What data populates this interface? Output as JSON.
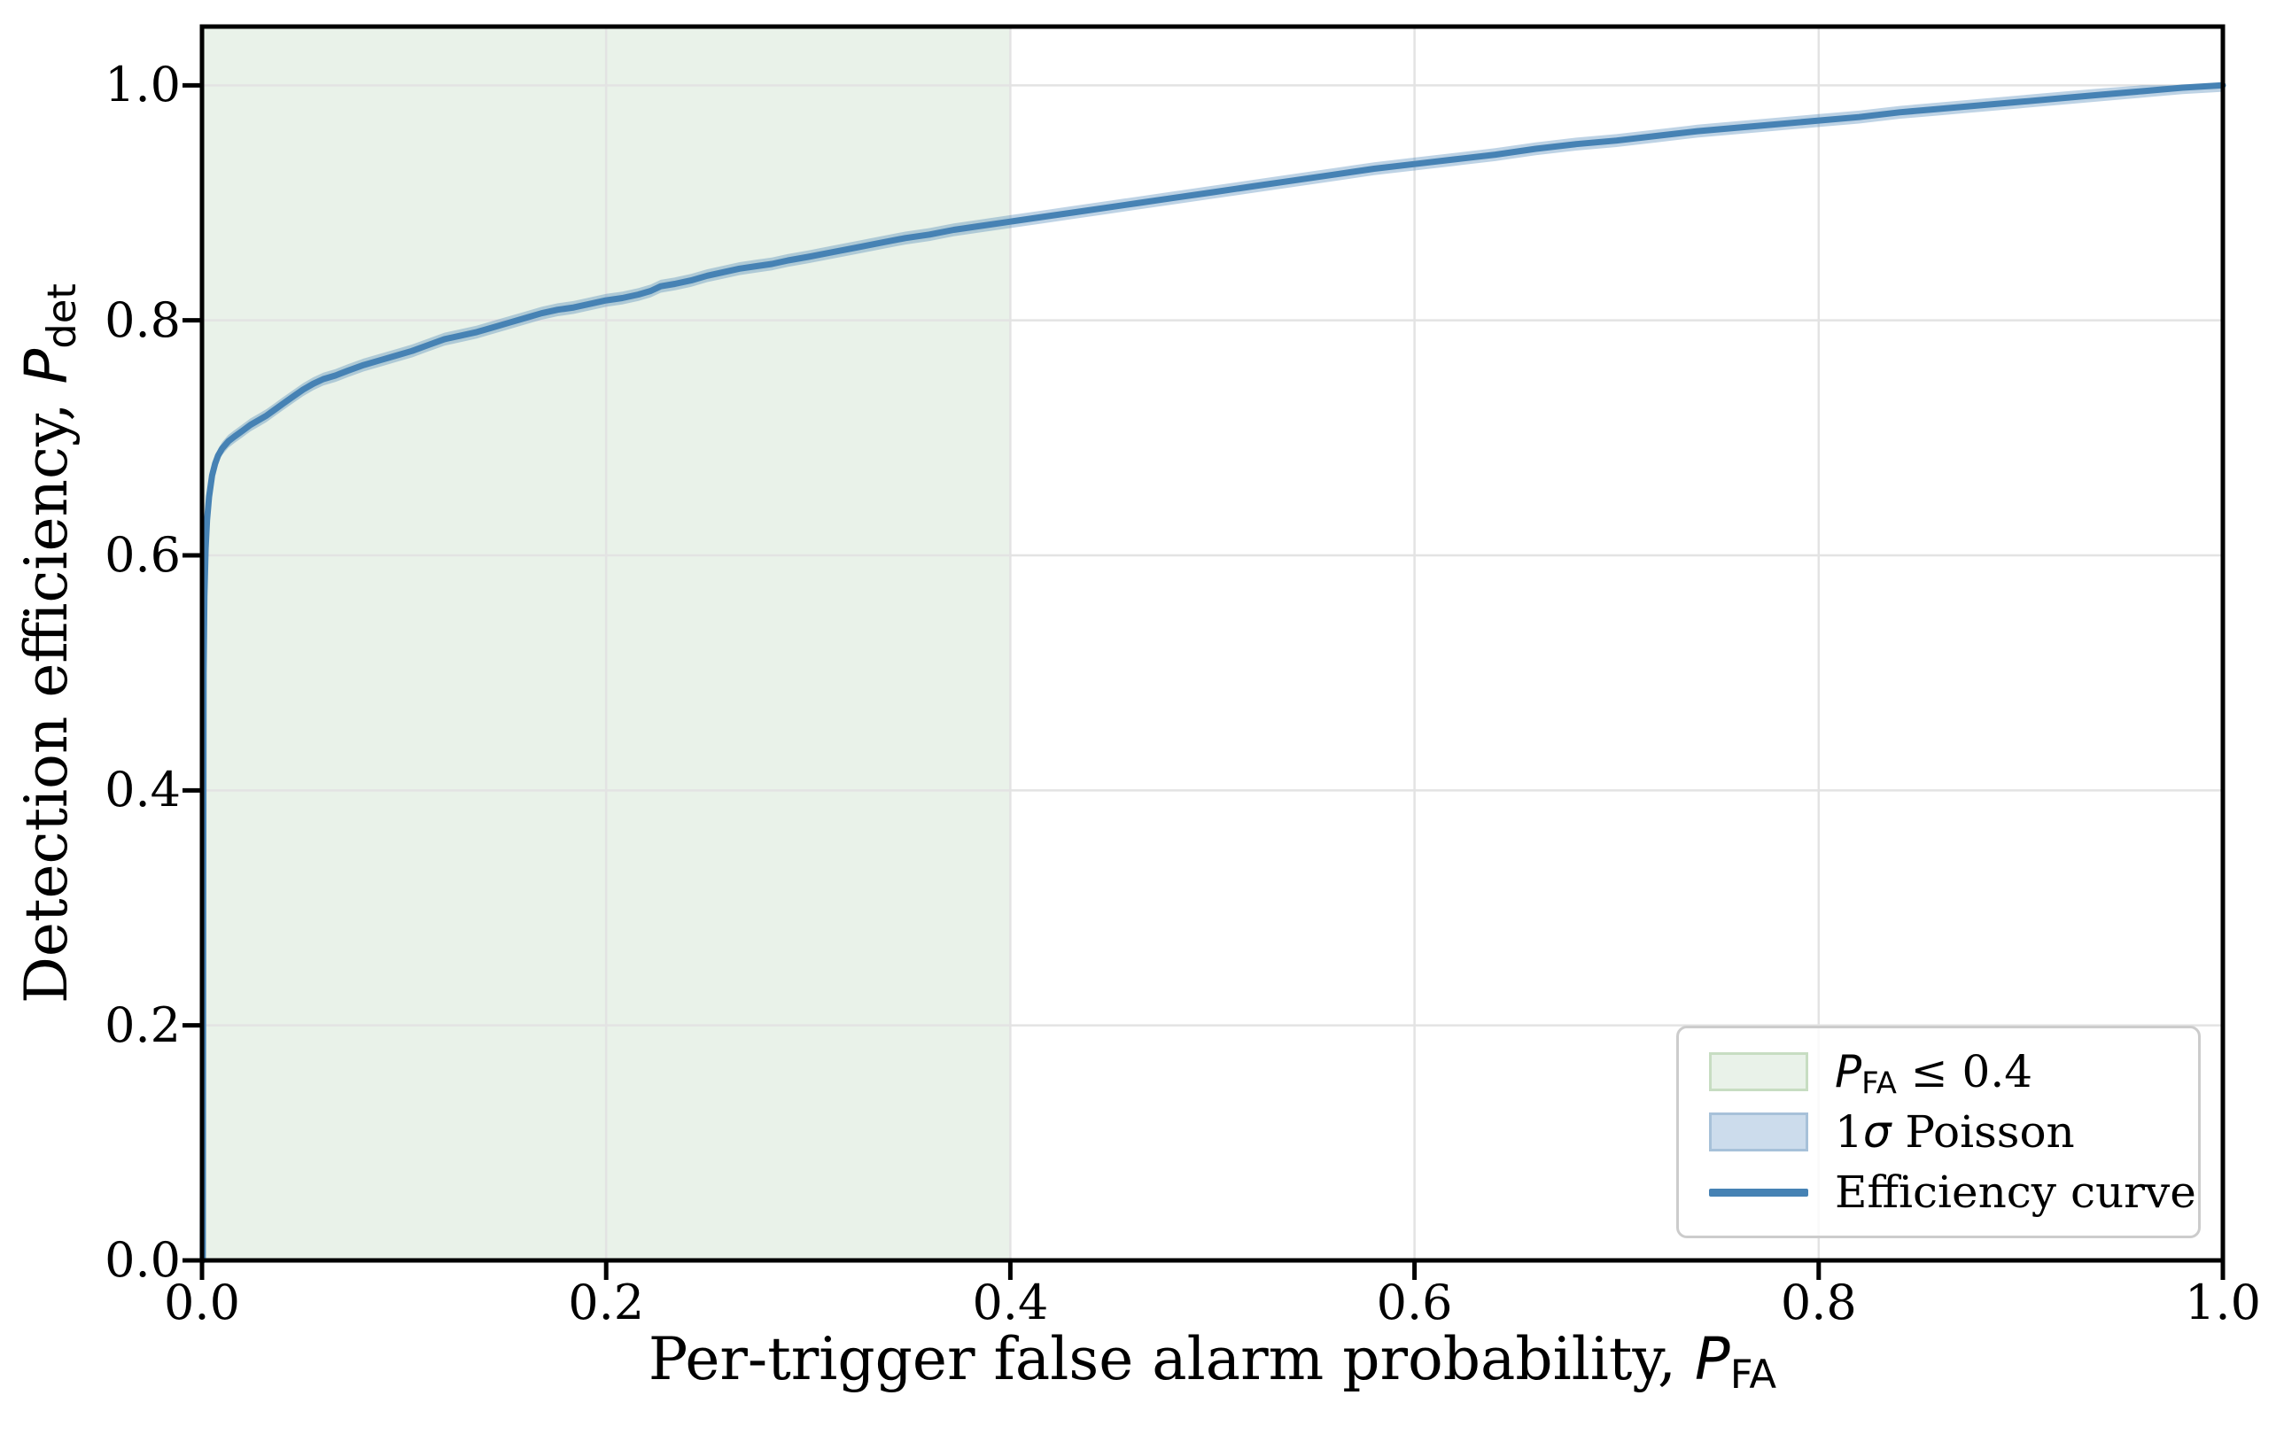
{
  "chart_data": {
    "type": "line",
    "title": "",
    "xlabel": {
      "prefix": "Per-trigger false alarm probability, ",
      "symbol": "P",
      "symbol_sub": "FA"
    },
    "ylabel": {
      "prefix": "Detection efficiency, ",
      "symbol": "P",
      "symbol_sub": "det"
    },
    "xlim": [
      0.0,
      1.0
    ],
    "ylim": [
      0.0,
      1.05
    ],
    "grid": true,
    "x_ticks": {
      "values": [
        0.0,
        0.2,
        0.4,
        0.6,
        0.8,
        1.0
      ],
      "labels": [
        "0.0",
        "0.2",
        "0.4",
        "0.6",
        "0.8",
        "1.0"
      ]
    },
    "y_ticks": {
      "values": [
        0.0,
        0.2,
        0.4,
        0.6,
        0.8,
        1.0
      ],
      "labels": [
        "0.0",
        "0.2",
        "0.4",
        "0.6",
        "0.8",
        "1.0"
      ]
    },
    "shaded_region": {
      "name": "PFA <= 0.4",
      "x_start": 0.0,
      "x_end": 0.4
    },
    "band": {
      "name": "1 sigma Poisson",
      "half_width": 0.0055
    },
    "series": [
      {
        "name": "Efficiency curve",
        "points": [
          [
            0.0004,
            0.0
          ],
          [
            0.0006,
            0.3
          ],
          [
            0.0008,
            0.5
          ],
          [
            0.0012,
            0.565
          ],
          [
            0.0018,
            0.606
          ],
          [
            0.0025,
            0.63
          ],
          [
            0.0035,
            0.65
          ],
          [
            0.005,
            0.668
          ],
          [
            0.0065,
            0.678
          ],
          [
            0.008,
            0.685
          ],
          [
            0.01,
            0.691
          ],
          [
            0.013,
            0.697
          ],
          [
            0.016,
            0.701
          ],
          [
            0.02,
            0.706
          ],
          [
            0.024,
            0.711
          ],
          [
            0.028,
            0.715
          ],
          [
            0.032,
            0.719
          ],
          [
            0.036,
            0.724
          ],
          [
            0.04,
            0.729
          ],
          [
            0.045,
            0.735
          ],
          [
            0.05,
            0.741
          ],
          [
            0.055,
            0.746
          ],
          [
            0.06,
            0.75
          ],
          [
            0.066,
            0.753
          ],
          [
            0.072,
            0.757
          ],
          [
            0.08,
            0.762
          ],
          [
            0.088,
            0.766
          ],
          [
            0.096,
            0.77
          ],
          [
            0.104,
            0.774
          ],
          [
            0.112,
            0.779
          ],
          [
            0.12,
            0.784
          ],
          [
            0.128,
            0.787
          ],
          [
            0.136,
            0.79
          ],
          [
            0.144,
            0.794
          ],
          [
            0.152,
            0.798
          ],
          [
            0.16,
            0.802
          ],
          [
            0.168,
            0.806
          ],
          [
            0.176,
            0.809
          ],
          [
            0.184,
            0.811
          ],
          [
            0.192,
            0.814
          ],
          [
            0.2,
            0.817
          ],
          [
            0.208,
            0.819
          ],
          [
            0.216,
            0.822
          ],
          [
            0.222,
            0.825
          ],
          [
            0.227,
            0.829
          ],
          [
            0.234,
            0.831
          ],
          [
            0.242,
            0.834
          ],
          [
            0.25,
            0.838
          ],
          [
            0.258,
            0.841
          ],
          [
            0.266,
            0.844
          ],
          [
            0.274,
            0.846
          ],
          [
            0.282,
            0.848
          ],
          [
            0.29,
            0.851
          ],
          [
            0.3,
            0.854
          ],
          [
            0.312,
            0.858
          ],
          [
            0.324,
            0.862
          ],
          [
            0.336,
            0.866
          ],
          [
            0.348,
            0.87
          ],
          [
            0.36,
            0.873
          ],
          [
            0.372,
            0.877
          ],
          [
            0.384,
            0.88
          ],
          [
            0.4,
            0.884
          ],
          [
            0.416,
            0.888
          ],
          [
            0.432,
            0.892
          ],
          [
            0.448,
            0.896
          ],
          [
            0.464,
            0.9
          ],
          [
            0.48,
            0.904
          ],
          [
            0.5,
            0.909
          ],
          [
            0.52,
            0.914
          ],
          [
            0.54,
            0.919
          ],
          [
            0.56,
            0.924
          ],
          [
            0.58,
            0.929
          ],
          [
            0.6,
            0.933
          ],
          [
            0.62,
            0.937
          ],
          [
            0.64,
            0.941
          ],
          [
            0.66,
            0.946
          ],
          [
            0.68,
            0.95
          ],
          [
            0.7,
            0.953
          ],
          [
            0.72,
            0.957
          ],
          [
            0.74,
            0.961
          ],
          [
            0.76,
            0.964
          ],
          [
            0.78,
            0.967
          ],
          [
            0.8,
            0.97
          ],
          [
            0.82,
            0.973
          ],
          [
            0.84,
            0.977
          ],
          [
            0.86,
            0.98
          ],
          [
            0.88,
            0.983
          ],
          [
            0.9,
            0.986
          ],
          [
            0.92,
            0.989
          ],
          [
            0.94,
            0.992
          ],
          [
            0.96,
            0.995
          ],
          [
            0.98,
            0.998
          ],
          [
            1.0,
            1.0
          ]
        ]
      }
    ]
  },
  "legend": {
    "items": [
      {
        "sym": "P",
        "sub": "FA",
        "rest": " ≤ 0.4",
        "swatch": "region"
      },
      {
        "pre": "1",
        "sym": "σ",
        "rest": " Poisson",
        "swatch": "band"
      },
      {
        "rest": "Efficiency curve",
        "swatch": "line"
      }
    ]
  },
  "colors": {
    "curve": "#4682b4",
    "band_fill": "rgba(70,130,180,0.35)",
    "band_legend_fill": "#ccdcec",
    "band_legend_edge": "#a7c1d9",
    "region_fill": "#e9f2e9",
    "region_legend_edge": "#c7ddc2",
    "grid": "#e3e3e3",
    "spine": "#000000",
    "legend_border": "#cccccc"
  }
}
